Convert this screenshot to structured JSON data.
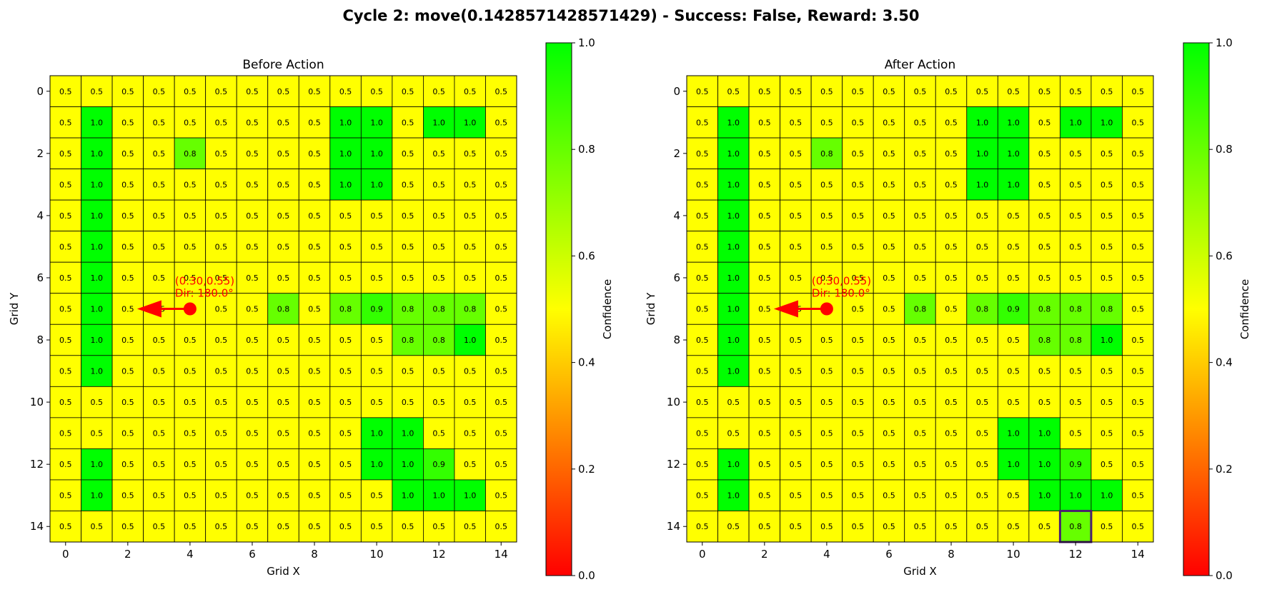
{
  "figure": {
    "title": "Cycle 2: move(0.1428571428571429) - Success: False, Reward: 3.50"
  },
  "chart_data": [
    {
      "type": "heatmap",
      "title": "Before Action",
      "xlabel": "Grid X",
      "ylabel": "Grid Y",
      "x_ticks": [
        "0",
        "2",
        "4",
        "6",
        "8",
        "10",
        "12",
        "14"
      ],
      "y_ticks": [
        "0",
        "2",
        "4",
        "6",
        "8",
        "10",
        "12",
        "14"
      ],
      "colorbar": {
        "label": "Confidence",
        "ticks": [
          "0.0",
          "0.2",
          "0.4",
          "0.6",
          "0.8",
          "1.0"
        ],
        "range": [
          0,
          1
        ],
        "colors": [
          "#ff0000",
          "#ffff00",
          "#00ff00"
        ]
      },
      "annotation": {
        "position_text": "(0.30,0.55)",
        "direction_text": "Dir: 180.0°",
        "agent_cell": [
          4,
          7
        ],
        "arrow_to": [
          2.3,
          7
        ],
        "color": "#ff0000"
      },
      "grid": [
        [
          0.5,
          0.5,
          0.5,
          0.5,
          0.5,
          0.5,
          0.5,
          0.5,
          0.5,
          0.5,
          0.5,
          0.5,
          0.5,
          0.5,
          0.5
        ],
        [
          0.5,
          1.0,
          0.5,
          0.5,
          0.5,
          0.5,
          0.5,
          0.5,
          0.5,
          1.0,
          1.0,
          0.5,
          1.0,
          1.0,
          0.5
        ],
        [
          0.5,
          1.0,
          0.5,
          0.5,
          0.8,
          0.5,
          0.5,
          0.5,
          0.5,
          1.0,
          1.0,
          0.5,
          0.5,
          0.5,
          0.5
        ],
        [
          0.5,
          1.0,
          0.5,
          0.5,
          0.5,
          0.5,
          0.5,
          0.5,
          0.5,
          1.0,
          1.0,
          0.5,
          0.5,
          0.5,
          0.5
        ],
        [
          0.5,
          1.0,
          0.5,
          0.5,
          0.5,
          0.5,
          0.5,
          0.5,
          0.5,
          0.5,
          0.5,
          0.5,
          0.5,
          0.5,
          0.5
        ],
        [
          0.5,
          1.0,
          0.5,
          0.5,
          0.5,
          0.5,
          0.5,
          0.5,
          0.5,
          0.5,
          0.5,
          0.5,
          0.5,
          0.5,
          0.5
        ],
        [
          0.5,
          1.0,
          0.5,
          0.5,
          0.5,
          0.5,
          0.5,
          0.5,
          0.5,
          0.5,
          0.5,
          0.5,
          0.5,
          0.5,
          0.5
        ],
        [
          0.5,
          1.0,
          0.5,
          0.5,
          0.5,
          0.5,
          0.5,
          0.8,
          0.5,
          0.8,
          0.9,
          0.8,
          0.8,
          0.8,
          0.5
        ],
        [
          0.5,
          1.0,
          0.5,
          0.5,
          0.5,
          0.5,
          0.5,
          0.5,
          0.5,
          0.5,
          0.5,
          0.8,
          0.8,
          1.0,
          0.5
        ],
        [
          0.5,
          1.0,
          0.5,
          0.5,
          0.5,
          0.5,
          0.5,
          0.5,
          0.5,
          0.5,
          0.5,
          0.5,
          0.5,
          0.5,
          0.5
        ],
        [
          0.5,
          0.5,
          0.5,
          0.5,
          0.5,
          0.5,
          0.5,
          0.5,
          0.5,
          0.5,
          0.5,
          0.5,
          0.5,
          0.5,
          0.5
        ],
        [
          0.5,
          0.5,
          0.5,
          0.5,
          0.5,
          0.5,
          0.5,
          0.5,
          0.5,
          0.5,
          1.0,
          1.0,
          0.5,
          0.5,
          0.5
        ],
        [
          0.5,
          1.0,
          0.5,
          0.5,
          0.5,
          0.5,
          0.5,
          0.5,
          0.5,
          0.5,
          1.0,
          1.0,
          0.9,
          0.5,
          0.5
        ],
        [
          0.5,
          1.0,
          0.5,
          0.5,
          0.5,
          0.5,
          0.5,
          0.5,
          0.5,
          0.5,
          0.5,
          1.0,
          1.0,
          1.0,
          0.5
        ],
        [
          0.5,
          0.5,
          0.5,
          0.5,
          0.5,
          0.5,
          0.5,
          0.5,
          0.5,
          0.5,
          0.5,
          0.5,
          0.5,
          0.5,
          0.5
        ]
      ]
    },
    {
      "type": "heatmap",
      "title": "After Action",
      "xlabel": "Grid X",
      "ylabel": "Grid Y",
      "x_ticks": [
        "0",
        "2",
        "4",
        "6",
        "8",
        "10",
        "12",
        "14"
      ],
      "y_ticks": [
        "0",
        "2",
        "4",
        "6",
        "8",
        "10",
        "12",
        "14"
      ],
      "colorbar": {
        "label": "Confidence",
        "ticks": [
          "0.0",
          "0.2",
          "0.4",
          "0.6",
          "0.8",
          "1.0"
        ],
        "range": [
          0,
          1
        ],
        "colors": [
          "#ff0000",
          "#ffff00",
          "#00ff00"
        ]
      },
      "annotation": {
        "position_text": "(0.30,0.55)",
        "direction_text": "Dir: 180.0°",
        "agent_cell": [
          4,
          7
        ],
        "arrow_to": [
          2.3,
          7
        ],
        "color": "#ff0000"
      },
      "highlight_cell": [
        12,
        14
      ],
      "highlight_color": "#4b1f6f",
      "grid": [
        [
          0.5,
          0.5,
          0.5,
          0.5,
          0.5,
          0.5,
          0.5,
          0.5,
          0.5,
          0.5,
          0.5,
          0.5,
          0.5,
          0.5,
          0.5
        ],
        [
          0.5,
          1.0,
          0.5,
          0.5,
          0.5,
          0.5,
          0.5,
          0.5,
          0.5,
          1.0,
          1.0,
          0.5,
          1.0,
          1.0,
          0.5
        ],
        [
          0.5,
          1.0,
          0.5,
          0.5,
          0.8,
          0.5,
          0.5,
          0.5,
          0.5,
          1.0,
          1.0,
          0.5,
          0.5,
          0.5,
          0.5
        ],
        [
          0.5,
          1.0,
          0.5,
          0.5,
          0.5,
          0.5,
          0.5,
          0.5,
          0.5,
          1.0,
          1.0,
          0.5,
          0.5,
          0.5,
          0.5
        ],
        [
          0.5,
          1.0,
          0.5,
          0.5,
          0.5,
          0.5,
          0.5,
          0.5,
          0.5,
          0.5,
          0.5,
          0.5,
          0.5,
          0.5,
          0.5
        ],
        [
          0.5,
          1.0,
          0.5,
          0.5,
          0.5,
          0.5,
          0.5,
          0.5,
          0.5,
          0.5,
          0.5,
          0.5,
          0.5,
          0.5,
          0.5
        ],
        [
          0.5,
          1.0,
          0.5,
          0.5,
          0.5,
          0.5,
          0.5,
          0.5,
          0.5,
          0.5,
          0.5,
          0.5,
          0.5,
          0.5,
          0.5
        ],
        [
          0.5,
          1.0,
          0.5,
          0.5,
          0.5,
          0.5,
          0.5,
          0.8,
          0.5,
          0.8,
          0.9,
          0.8,
          0.8,
          0.8,
          0.5
        ],
        [
          0.5,
          1.0,
          0.5,
          0.5,
          0.5,
          0.5,
          0.5,
          0.5,
          0.5,
          0.5,
          0.5,
          0.8,
          0.8,
          1.0,
          0.5
        ],
        [
          0.5,
          1.0,
          0.5,
          0.5,
          0.5,
          0.5,
          0.5,
          0.5,
          0.5,
          0.5,
          0.5,
          0.5,
          0.5,
          0.5,
          0.5
        ],
        [
          0.5,
          0.5,
          0.5,
          0.5,
          0.5,
          0.5,
          0.5,
          0.5,
          0.5,
          0.5,
          0.5,
          0.5,
          0.5,
          0.5,
          0.5
        ],
        [
          0.5,
          0.5,
          0.5,
          0.5,
          0.5,
          0.5,
          0.5,
          0.5,
          0.5,
          0.5,
          1.0,
          1.0,
          0.5,
          0.5,
          0.5
        ],
        [
          0.5,
          1.0,
          0.5,
          0.5,
          0.5,
          0.5,
          0.5,
          0.5,
          0.5,
          0.5,
          1.0,
          1.0,
          0.9,
          0.5,
          0.5
        ],
        [
          0.5,
          1.0,
          0.5,
          0.5,
          0.5,
          0.5,
          0.5,
          0.5,
          0.5,
          0.5,
          0.5,
          1.0,
          1.0,
          1.0,
          0.5
        ],
        [
          0.5,
          0.5,
          0.5,
          0.5,
          0.5,
          0.5,
          0.5,
          0.5,
          0.5,
          0.5,
          0.5,
          0.5,
          0.8,
          0.5,
          0.5
        ]
      ]
    }
  ]
}
